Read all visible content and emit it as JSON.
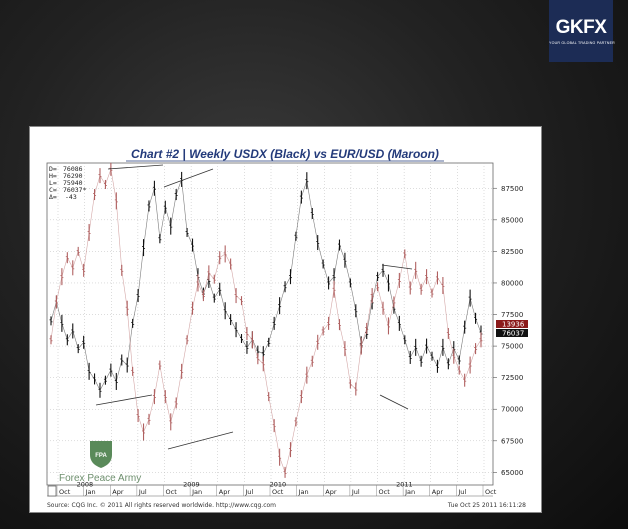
{
  "brand": {
    "name": "GKFX",
    "tagline": "YOUR GLOBAL TRADING PARTNER",
    "color": "#1c2c55"
  },
  "chart_data": {
    "type": "line",
    "title": "Chart #2 | Weekly USDX (Black) vs EUR/USD (Maroon)",
    "ohlc_readout": {
      "D": "76086",
      "H": "76290",
      "L": "75940",
      "C": "76037*",
      "delta": "-43"
    },
    "y_ticks": [
      "87500",
      "85000",
      "82500",
      "80000",
      "77500",
      "75000",
      "72500",
      "70000",
      "67500",
      "65000"
    ],
    "ylim": [
      64000,
      89500
    ],
    "x_month_ticks": [
      "Oct",
      "Jan",
      "Apr",
      "Jul",
      "Oct",
      "Jan",
      "Apr",
      "Jul",
      "Oct",
      "Jan",
      "Apr",
      "Jul",
      "Oct",
      "Jan",
      "Apr",
      "Jul",
      "Oct"
    ],
    "x_year_ticks": [
      "2008",
      "2009",
      "2010",
      "2011"
    ],
    "last_price_labels": [
      {
        "value": "13936",
        "color": "#8b1a1a"
      },
      {
        "value": "76037",
        "color": "#111111"
      }
    ],
    "series": [
      {
        "color": "#111111",
        "x": [
          0,
          2,
          4,
          6,
          8,
          10,
          12,
          14,
          16,
          18,
          20,
          22,
          24,
          26,
          28,
          30,
          32,
          34,
          36,
          38,
          40,
          42,
          44,
          46,
          48,
          50,
          52,
          54,
          56,
          58,
          60,
          62,
          64,
          66,
          68,
          70,
          72,
          74,
          76,
          78,
          80,
          82,
          84,
          86,
          88,
          90,
          92,
          94,
          96,
          98,
          100,
          102,
          104,
          106,
          108,
          110,
          112,
          114,
          116,
          118,
          120,
          122,
          124,
          126,
          128,
          130,
          132,
          134,
          136,
          138,
          140,
          142,
          144,
          146,
          148,
          150,
          152,
          154,
          156,
          158
        ],
        "values": [
          77000,
          78500,
          76800,
          75500,
          76200,
          74800,
          75300,
          73000,
          72400,
          71500,
          72300,
          73100,
          72200,
          73900,
          73500,
          76800,
          79000,
          82800,
          86100,
          87500,
          83500,
          86000,
          84500,
          87000,
          88200,
          84000,
          83000,
          80500,
          79200,
          80200,
          78800,
          79500,
          77800,
          77100,
          76300,
          75600,
          74900,
          75500,
          74600,
          74400,
          75300,
          76800,
          78200,
          79700,
          80500,
          83700,
          86800,
          88100,
          85500,
          83200,
          81500,
          80000,
          80500,
          83000,
          81800,
          80000,
          77800,
          75100,
          76000,
          78500,
          80500,
          81000,
          80000,
          78000,
          76800,
          75500,
          74100,
          74900,
          73800,
          75000,
          74200,
          73400,
          74900,
          73600,
          74800,
          73900,
          76500,
          78800,
          77200,
          76037
        ]
      },
      {
        "color": "#b06060",
        "x": [
          0,
          2,
          4,
          6,
          8,
          10,
          12,
          14,
          16,
          18,
          20,
          22,
          24,
          26,
          28,
          30,
          32,
          34,
          36,
          38,
          40,
          42,
          44,
          46,
          48,
          50,
          52,
          54,
          56,
          58,
          60,
          62,
          64,
          66,
          68,
          70,
          72,
          74,
          76,
          78,
          80,
          82,
          84,
          86,
          88,
          90,
          92,
          94,
          96,
          98,
          100,
          102,
          104,
          106,
          108,
          110,
          112,
          114,
          116,
          118,
          120,
          122,
          124,
          126,
          128,
          130,
          132,
          134,
          136,
          138,
          140,
          142,
          144,
          146,
          148,
          150,
          152,
          154,
          156,
          158
        ],
        "values": [
          75500,
          78500,
          80500,
          82000,
          81200,
          82500,
          81000,
          84000,
          87000,
          88500,
          87800,
          89000,
          86500,
          81000,
          78000,
          73000,
          69500,
          68200,
          69200,
          71000,
          73500,
          71000,
          69000,
          70500,
          73000,
          75500,
          78000,
          80000,
          79000,
          80800,
          80300,
          82000,
          82300,
          81500,
          79000,
          78600,
          76000,
          75500,
          74000,
          73600,
          71000,
          68700,
          66200,
          65000,
          66800,
          69000,
          71000,
          72700,
          73800,
          75300,
          76200,
          76800,
          79500,
          76700,
          74800,
          72000,
          71600,
          75000,
          76400,
          79000,
          79700,
          78000,
          76600,
          78500,
          80200,
          82300,
          79600,
          81000,
          79500,
          80500,
          79200,
          80400,
          79800,
          76000,
          74200,
          73100,
          72300,
          73500,
          74800,
          75500
        ]
      }
    ],
    "annotations": [
      "Forex Peace Army",
      "FPA"
    ],
    "footer": {
      "source": "Source: CQG Inc. © 2011 All rights reserved worldwide. http://www.cqg.com",
      "timestamp": "Tue Oct 25 2011 16:11:28"
    }
  }
}
